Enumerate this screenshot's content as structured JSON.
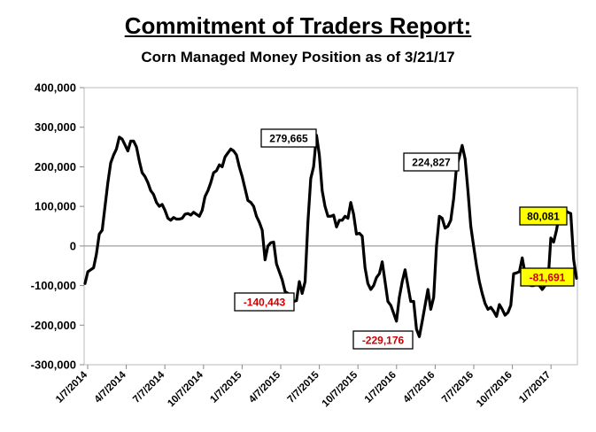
{
  "chart_data": {
    "type": "line",
    "title": "Commitment of Traders Report:",
    "subtitle": "Corn Managed Money Position as of 3/21/17",
    "xlabel": "",
    "ylabel": "",
    "ylim": [
      -300000,
      400000
    ],
    "yticks": [
      400000,
      300000,
      200000,
      100000,
      0,
      -100000,
      -200000,
      -300000
    ],
    "ytick_labels": [
      "400,000",
      "300,000",
      "200,000",
      "100,000",
      "0",
      "-100,000",
      "-200,000",
      "-300,000"
    ],
    "xtick_labels": [
      "1/7/2014",
      "4/7/2014",
      "7/7/2014",
      "10/7/2014",
      "1/7/2015",
      "4/7/2015",
      "7/7/2015",
      "10/7/2015",
      "1/7/2016",
      "4/7/2016",
      "7/7/2016",
      "10/7/2016",
      "1/7/2017"
    ],
    "grid": false,
    "legend": "none",
    "line_color": "#000000",
    "series": [
      {
        "values": [
          -95000,
          -65000,
          -60000,
          -55000,
          -20000,
          30000,
          40000,
          100000,
          160000,
          210000,
          230000,
          245000,
          275000,
          270000,
          255000,
          240000,
          265000,
          265000,
          250000,
          215000,
          185000,
          175000,
          160000,
          140000,
          130000,
          110000,
          100000,
          105000,
          90000,
          70000,
          65000,
          72000,
          68000,
          68000,
          70000,
          80000,
          82000,
          78000,
          85000,
          80000,
          75000,
          90000,
          125000,
          140000,
          160000,
          185000,
          190000,
          205000,
          200000,
          225000,
          235000,
          245000,
          240000,
          230000,
          200000,
          175000,
          145000,
          115000,
          110000,
          100000,
          75000,
          60000,
          40000,
          -35000,
          0,
          8000,
          10000,
          -45000,
          -65000,
          -85000,
          -115000,
          -120000,
          -130000,
          -140000,
          -138000,
          -90000,
          -120000,
          -90000,
          60000,
          170000,
          200000,
          279665,
          230000,
          140000,
          100000,
          75000,
          75000,
          78000,
          48000,
          65000,
          65000,
          75000,
          70000,
          110000,
          80000,
          30000,
          32000,
          25000,
          -55000,
          -95000,
          -110000,
          -100000,
          -80000,
          -70000,
          -40000,
          -90000,
          -140000,
          -150000,
          -170000,
          -190000,
          -130000,
          -90000,
          -60000,
          -100000,
          -140000,
          -140000,
          -210000,
          -229176,
          -190000,
          -150000,
          -110000,
          -160000,
          -130000,
          0,
          75000,
          70000,
          45000,
          50000,
          65000,
          120000,
          200000,
          224827,
          254000,
          220000,
          140000,
          50000,
          0,
          -50000,
          -90000,
          -120000,
          -145000,
          -160000,
          -155000,
          -165000,
          -178000,
          -148000,
          -160000,
          -175000,
          -168000,
          -150000,
          -70000,
          -68000,
          -65000,
          -30000,
          -70000,
          -95000,
          -100000,
          -100000,
          -96000,
          -100000,
          -110000,
          -100000,
          -95000,
          20000,
          10000,
          40000,
          80081,
          95000,
          90000,
          85000,
          82000,
          -35000,
          -81691
        ]
      }
    ],
    "annotations": [
      {
        "text": "279,665",
        "highlight": false,
        "value_color": "#000000",
        "bg": "#ffffff"
      },
      {
        "text": "-140,443",
        "highlight": false,
        "value_color": "#cc0000",
        "bg": "#ffffff"
      },
      {
        "text": "-229,176",
        "highlight": false,
        "value_color": "#cc0000",
        "bg": "#ffffff"
      },
      {
        "text": "224,827",
        "highlight": false,
        "value_color": "#000000",
        "bg": "#ffffff"
      },
      {
        "text": "80,081",
        "highlight": true,
        "value_color": "#000000",
        "bg": "#ffff00"
      },
      {
        "text": "-81,691",
        "highlight": true,
        "value_color": "#cc0000",
        "bg": "#ffff00"
      }
    ]
  }
}
